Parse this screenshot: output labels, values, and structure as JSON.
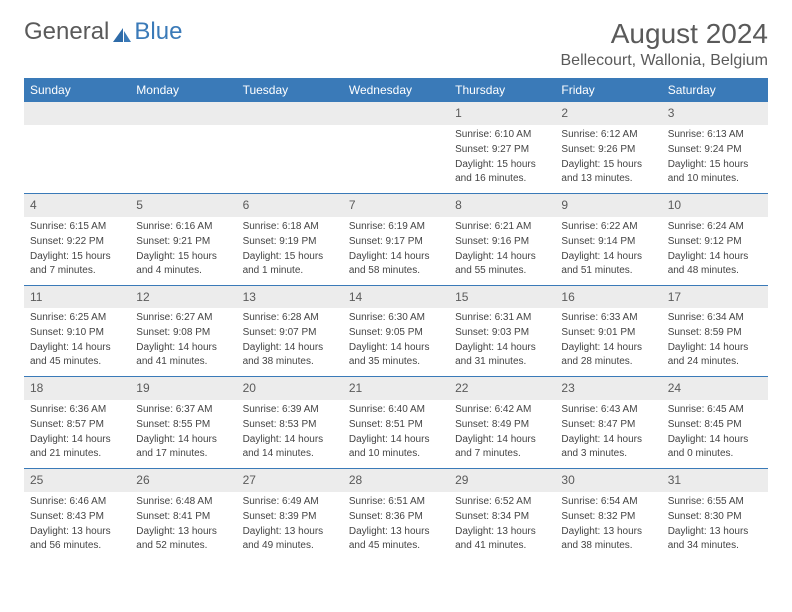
{
  "logo": {
    "text1": "General",
    "text2": "Blue"
  },
  "title": "August 2024",
  "location": "Bellecourt, Wallonia, Belgium",
  "colors": {
    "header_bg": "#3a7ab8",
    "header_text": "#ffffff",
    "daynum_bg": "#ececec",
    "border": "#3a7ab8",
    "body_text": "#444444",
    "title_text": "#5a5a5a"
  },
  "weekdays": [
    "Sunday",
    "Monday",
    "Tuesday",
    "Wednesday",
    "Thursday",
    "Friday",
    "Saturday"
  ],
  "weeks": [
    [
      {
        "n": "",
        "empty": true
      },
      {
        "n": "",
        "empty": true
      },
      {
        "n": "",
        "empty": true
      },
      {
        "n": "",
        "empty": true
      },
      {
        "n": "1",
        "sunrise": "Sunrise: 6:10 AM",
        "sunset": "Sunset: 9:27 PM",
        "daylight": "Daylight: 15 hours and 16 minutes."
      },
      {
        "n": "2",
        "sunrise": "Sunrise: 6:12 AM",
        "sunset": "Sunset: 9:26 PM",
        "daylight": "Daylight: 15 hours and 13 minutes."
      },
      {
        "n": "3",
        "sunrise": "Sunrise: 6:13 AM",
        "sunset": "Sunset: 9:24 PM",
        "daylight": "Daylight: 15 hours and 10 minutes."
      }
    ],
    [
      {
        "n": "4",
        "sunrise": "Sunrise: 6:15 AM",
        "sunset": "Sunset: 9:22 PM",
        "daylight": "Daylight: 15 hours and 7 minutes."
      },
      {
        "n": "5",
        "sunrise": "Sunrise: 6:16 AM",
        "sunset": "Sunset: 9:21 PM",
        "daylight": "Daylight: 15 hours and 4 minutes."
      },
      {
        "n": "6",
        "sunrise": "Sunrise: 6:18 AM",
        "sunset": "Sunset: 9:19 PM",
        "daylight": "Daylight: 15 hours and 1 minute."
      },
      {
        "n": "7",
        "sunrise": "Sunrise: 6:19 AM",
        "sunset": "Sunset: 9:17 PM",
        "daylight": "Daylight: 14 hours and 58 minutes."
      },
      {
        "n": "8",
        "sunrise": "Sunrise: 6:21 AM",
        "sunset": "Sunset: 9:16 PM",
        "daylight": "Daylight: 14 hours and 55 minutes."
      },
      {
        "n": "9",
        "sunrise": "Sunrise: 6:22 AM",
        "sunset": "Sunset: 9:14 PM",
        "daylight": "Daylight: 14 hours and 51 minutes."
      },
      {
        "n": "10",
        "sunrise": "Sunrise: 6:24 AM",
        "sunset": "Sunset: 9:12 PM",
        "daylight": "Daylight: 14 hours and 48 minutes."
      }
    ],
    [
      {
        "n": "11",
        "sunrise": "Sunrise: 6:25 AM",
        "sunset": "Sunset: 9:10 PM",
        "daylight": "Daylight: 14 hours and 45 minutes."
      },
      {
        "n": "12",
        "sunrise": "Sunrise: 6:27 AM",
        "sunset": "Sunset: 9:08 PM",
        "daylight": "Daylight: 14 hours and 41 minutes."
      },
      {
        "n": "13",
        "sunrise": "Sunrise: 6:28 AM",
        "sunset": "Sunset: 9:07 PM",
        "daylight": "Daylight: 14 hours and 38 minutes."
      },
      {
        "n": "14",
        "sunrise": "Sunrise: 6:30 AM",
        "sunset": "Sunset: 9:05 PM",
        "daylight": "Daylight: 14 hours and 35 minutes."
      },
      {
        "n": "15",
        "sunrise": "Sunrise: 6:31 AM",
        "sunset": "Sunset: 9:03 PM",
        "daylight": "Daylight: 14 hours and 31 minutes."
      },
      {
        "n": "16",
        "sunrise": "Sunrise: 6:33 AM",
        "sunset": "Sunset: 9:01 PM",
        "daylight": "Daylight: 14 hours and 28 minutes."
      },
      {
        "n": "17",
        "sunrise": "Sunrise: 6:34 AM",
        "sunset": "Sunset: 8:59 PM",
        "daylight": "Daylight: 14 hours and 24 minutes."
      }
    ],
    [
      {
        "n": "18",
        "sunrise": "Sunrise: 6:36 AM",
        "sunset": "Sunset: 8:57 PM",
        "daylight": "Daylight: 14 hours and 21 minutes."
      },
      {
        "n": "19",
        "sunrise": "Sunrise: 6:37 AM",
        "sunset": "Sunset: 8:55 PM",
        "daylight": "Daylight: 14 hours and 17 minutes."
      },
      {
        "n": "20",
        "sunrise": "Sunrise: 6:39 AM",
        "sunset": "Sunset: 8:53 PM",
        "daylight": "Daylight: 14 hours and 14 minutes."
      },
      {
        "n": "21",
        "sunrise": "Sunrise: 6:40 AM",
        "sunset": "Sunset: 8:51 PM",
        "daylight": "Daylight: 14 hours and 10 minutes."
      },
      {
        "n": "22",
        "sunrise": "Sunrise: 6:42 AM",
        "sunset": "Sunset: 8:49 PM",
        "daylight": "Daylight: 14 hours and 7 minutes."
      },
      {
        "n": "23",
        "sunrise": "Sunrise: 6:43 AM",
        "sunset": "Sunset: 8:47 PM",
        "daylight": "Daylight: 14 hours and 3 minutes."
      },
      {
        "n": "24",
        "sunrise": "Sunrise: 6:45 AM",
        "sunset": "Sunset: 8:45 PM",
        "daylight": "Daylight: 14 hours and 0 minutes."
      }
    ],
    [
      {
        "n": "25",
        "sunrise": "Sunrise: 6:46 AM",
        "sunset": "Sunset: 8:43 PM",
        "daylight": "Daylight: 13 hours and 56 minutes."
      },
      {
        "n": "26",
        "sunrise": "Sunrise: 6:48 AM",
        "sunset": "Sunset: 8:41 PM",
        "daylight": "Daylight: 13 hours and 52 minutes."
      },
      {
        "n": "27",
        "sunrise": "Sunrise: 6:49 AM",
        "sunset": "Sunset: 8:39 PM",
        "daylight": "Daylight: 13 hours and 49 minutes."
      },
      {
        "n": "28",
        "sunrise": "Sunrise: 6:51 AM",
        "sunset": "Sunset: 8:36 PM",
        "daylight": "Daylight: 13 hours and 45 minutes."
      },
      {
        "n": "29",
        "sunrise": "Sunrise: 6:52 AM",
        "sunset": "Sunset: 8:34 PM",
        "daylight": "Daylight: 13 hours and 41 minutes."
      },
      {
        "n": "30",
        "sunrise": "Sunrise: 6:54 AM",
        "sunset": "Sunset: 8:32 PM",
        "daylight": "Daylight: 13 hours and 38 minutes."
      },
      {
        "n": "31",
        "sunrise": "Sunrise: 6:55 AM",
        "sunset": "Sunset: 8:30 PM",
        "daylight": "Daylight: 13 hours and 34 minutes."
      }
    ]
  ]
}
